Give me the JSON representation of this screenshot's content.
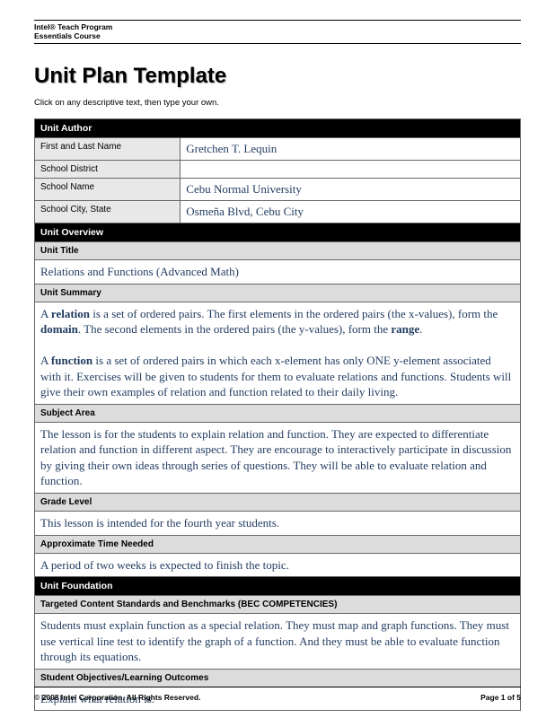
{
  "header": {
    "program": "Intel® Teach Program",
    "course": "Essentials Course"
  },
  "title": "Unit Plan Template",
  "instruction": "Click on any descriptive text, then type your own.",
  "colors": {
    "section_header_bg": "#000000",
    "section_header_fg": "#ffffff",
    "label_bg": "#e8e8e8",
    "subheader_bg": "#dcdcdc",
    "content_text": "#1f3a5f",
    "page_bg": "#ffffff"
  },
  "author": {
    "section_title": "Unit Author",
    "rows": [
      {
        "label": "First and Last Name",
        "value": "Gretchen T. Lequin"
      },
      {
        "label": "School District",
        "value": ""
      },
      {
        "label": "School Name",
        "value": "Cebu Normal University"
      },
      {
        "label": "School City, State",
        "value": "Osmeña Blvd, Cebu City"
      }
    ]
  },
  "overview": {
    "section_title": "Unit Overview",
    "unit_title_label": "Unit Title",
    "unit_title": "Relations and Functions (Advanced Math)",
    "summary_label": "Unit Summary",
    "summary_html": "A <b>relation</b> is a set of ordered pairs. The first elements in the ordered pairs (the x-values), form the <b>domain</b>.  The second elements in the ordered pairs (the y-values), form the <b>range</b>.<br><br>A <b>function</b> is a set of ordered pairs in which each x-element has only ONE y-element associated with it. Exercises will be given to students for them to evaluate relations and functions. Students will give their own examples of relation and function related to their daily living.",
    "subject_label": "Subject Area",
    "subject": "The lesson is for the students to explain relation and function. They are expected to differentiate relation and function in different aspect. They are encourage to interactively participate in discussion by giving their own ideas through series of questions. They will be able to evaluate relation and function.",
    "grade_label": "Grade Level",
    "grade": "This lesson is intended for the fourth year students.",
    "time_label": "Approximate Time Needed",
    "time": "A period of two weeks is expected to finish the topic."
  },
  "foundation": {
    "section_title": "Unit Foundation",
    "standards_label": "Targeted Content Standards and Benchmarks (BEC COMPETENCIES)",
    "standards": "Students must explain function as a special relation. They must map and graph functions. They must use vertical line test to identify the graph of a function. And they must be able to evaluate function through its equations.",
    "objectives_label": "Student Objectives/Learning Outcomes",
    "objectives": "Explain what relation is."
  },
  "footer": {
    "copyright": "© 2008 Intel Corporation. All Rights Reserved.",
    "page": "Page 1 of 5"
  }
}
